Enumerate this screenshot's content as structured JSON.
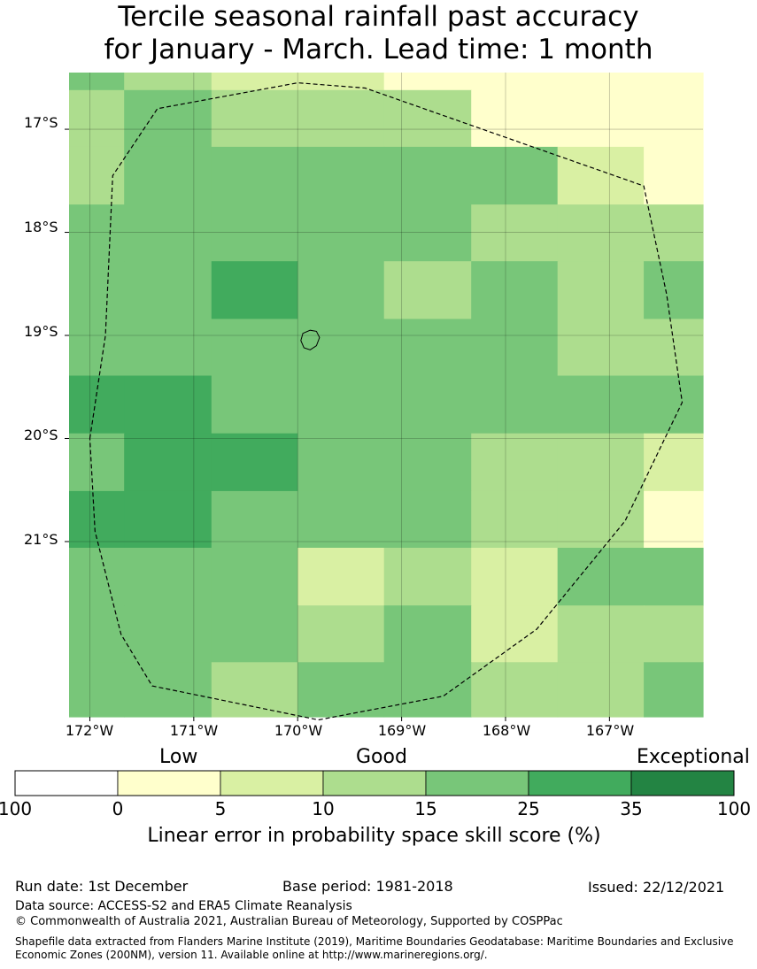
{
  "title": {
    "line1": "Tercile seasonal rainfall past accuracy",
    "line2": "for January - March. Lead time: 1 month"
  },
  "map": {
    "lon_range": [
      -172.2,
      -166.1
    ],
    "lat_range": [
      -22.7,
      -16.45
    ],
    "lat_ticks": [
      {
        "value": -17,
        "label": "17°S"
      },
      {
        "value": -18,
        "label": "18°S"
      },
      {
        "value": -19,
        "label": "19°S"
      },
      {
        "value": -20,
        "label": "20°S"
      },
      {
        "value": -21,
        "label": "21°S"
      }
    ],
    "lon_ticks": [
      {
        "value": -172,
        "label": "172°W"
      },
      {
        "value": -171,
        "label": "171°W"
      },
      {
        "value": -170,
        "label": "170°W"
      },
      {
        "value": -169,
        "label": "169°W"
      },
      {
        "value": -168,
        "label": "168°W"
      },
      {
        "value": -167,
        "label": "167°W"
      }
    ],
    "grid_lon_edges": [
      -172.2,
      -171.67,
      -170.83,
      -170.0,
      -169.17,
      -168.33,
      -167.5,
      -166.67,
      -166.1
    ],
    "grid_lat_edges": [
      -16.45,
      -16.62,
      -17.17,
      -17.73,
      -18.28,
      -18.84,
      -19.39,
      -19.95,
      -20.51,
      -21.06,
      -21.62,
      -22.17,
      -22.7
    ],
    "skill_grid": [
      [
        20,
        12,
        7,
        7,
        2,
        2,
        2,
        2
      ],
      [
        12,
        20,
        12,
        12,
        12,
        2,
        2,
        2
      ],
      [
        12,
        20,
        20,
        20,
        20,
        20,
        7,
        2
      ],
      [
        20,
        20,
        20,
        20,
        20,
        12,
        12,
        12
      ],
      [
        20,
        20,
        30,
        20,
        12,
        20,
        12,
        20
      ],
      [
        20,
        20,
        20,
        20,
        20,
        20,
        12,
        12
      ],
      [
        30,
        30,
        20,
        20,
        20,
        20,
        20,
        20
      ],
      [
        20,
        30,
        30,
        20,
        20,
        12,
        12,
        7
      ],
      [
        30,
        30,
        20,
        20,
        20,
        12,
        12,
        2
      ],
      [
        20,
        20,
        20,
        7,
        12,
        7,
        20,
        20
      ],
      [
        20,
        20,
        20,
        12,
        20,
        7,
        12,
        12
      ],
      [
        20,
        20,
        12,
        20,
        20,
        12,
        12,
        20
      ]
    ],
    "eez_boundary": [
      [
        -172.0,
        -20.0
      ],
      [
        -171.85,
        -19.0
      ],
      [
        -171.78,
        -17.45
      ],
      [
        -171.35,
        -16.8
      ],
      [
        -170.0,
        -16.55
      ],
      [
        -169.35,
        -16.6
      ],
      [
        -166.67,
        -17.55
      ],
      [
        -166.45,
        -18.6
      ],
      [
        -166.3,
        -19.65
      ],
      [
        -166.85,
        -20.8
      ],
      [
        -167.7,
        -21.85
      ],
      [
        -168.6,
        -22.5
      ],
      [
        -169.8,
        -22.73
      ],
      [
        -171.4,
        -22.4
      ],
      [
        -171.7,
        -21.9
      ],
      [
        -171.95,
        -20.9
      ],
      [
        -172.0,
        -20.0
      ]
    ],
    "island_outline": [
      [
        -169.95,
        -18.98
      ],
      [
        -169.88,
        -18.95
      ],
      [
        -169.82,
        -18.96
      ],
      [
        -169.79,
        -19.02
      ],
      [
        -169.82,
        -19.1
      ],
      [
        -169.88,
        -19.14
      ],
      [
        -169.94,
        -19.12
      ],
      [
        -169.97,
        -19.05
      ],
      [
        -169.95,
        -18.98
      ]
    ]
  },
  "legend": {
    "categories": [
      {
        "label": "Low"
      },
      {
        "label": "Good"
      },
      {
        "label": "Exceptional"
      }
    ],
    "bins": [
      {
        "color": "#ffffff"
      },
      {
        "color": "#ffffcc"
      },
      {
        "color": "#d9f0a3"
      },
      {
        "color": "#addd8e"
      },
      {
        "color": "#78c679"
      },
      {
        "color": "#41ab5d"
      },
      {
        "color": "#238443"
      }
    ],
    "tick_labels": [
      "100",
      "0",
      "5",
      "10",
      "15",
      "25",
      "35",
      "100"
    ],
    "axis_label": "Linear error in probability space skill score (%)"
  },
  "info": {
    "run_date": "Run date: 1st December",
    "base_period": "Base period: 1981-2018",
    "issued": "Issued: 22/12/2021",
    "data_source": "Data source: ACCESS-S2 and ERA5 Climate Reanalysis",
    "copyright": "© Commonwealth of Australia 2021, Australian Bureau of Meteorology, Supported by COSPPac",
    "shapefile": "Shapefile data extracted from Flanders Marine Institute (2019), Maritime Boundaries Geodatabase: Maritime Boundaries and Exclusive Economic Zones (200NM), version 11. Available online at http://www.marineregions.org/."
  }
}
